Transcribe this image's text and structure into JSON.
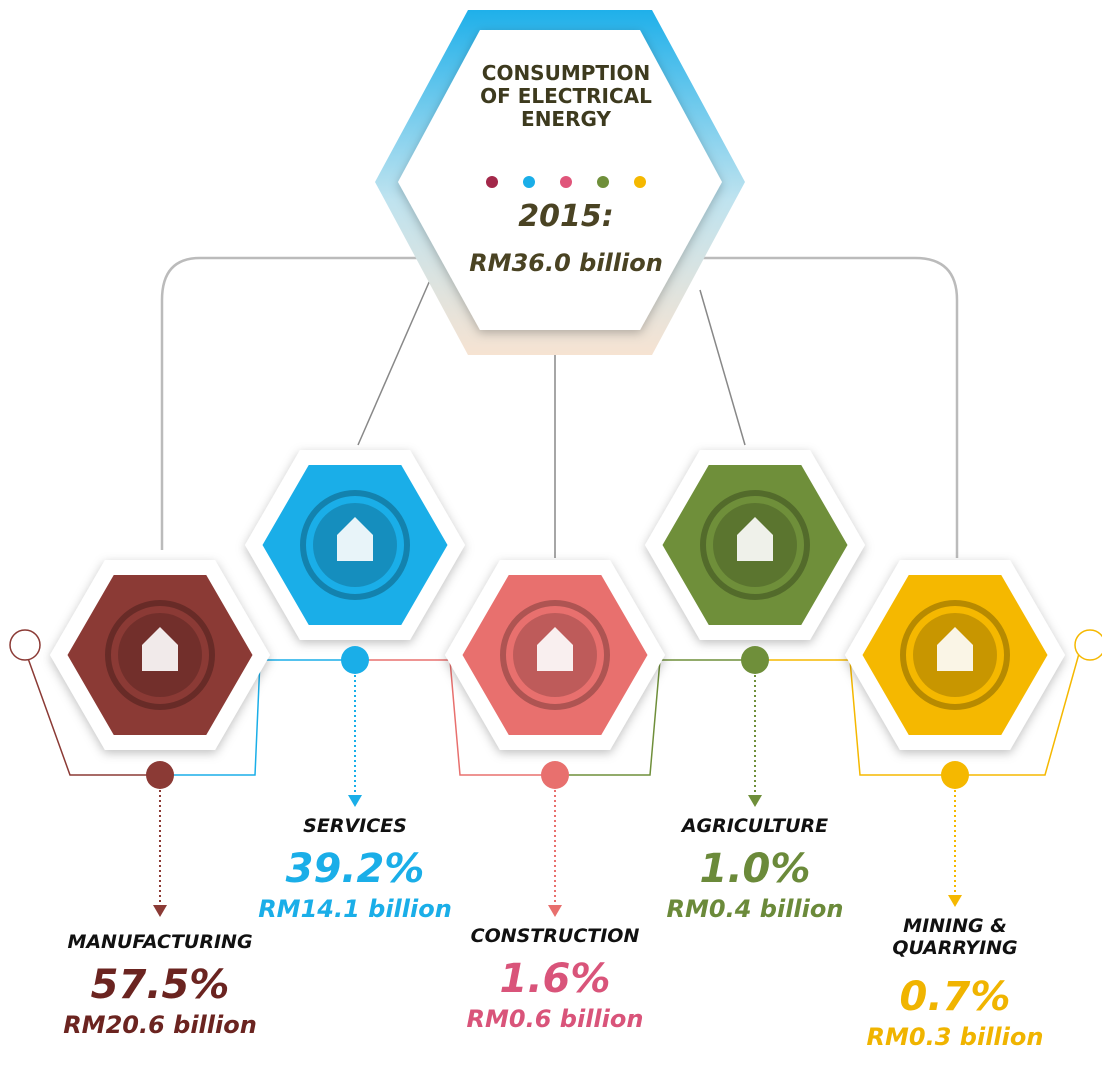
{
  "header": {
    "title": "CONSUMPTION OF ELECTRICAL ENERGY",
    "year": "2015:",
    "total": "RM36.0 billion"
  },
  "legend_colors": [
    "#a3284a",
    "#1aaee8",
    "#e0557a",
    "#6f8f3a",
    "#f5b800"
  ],
  "sectors": [
    {
      "name": "MANUFACTURING",
      "share": "57.5%",
      "amount": "RM20.6 billion",
      "color": "#8b3a35",
      "text_color": "#6b2420"
    },
    {
      "name": "SERVICES",
      "share": "39.2%",
      "amount": "RM14.1 billion",
      "color": "#1aaee8",
      "text_color": "#1aaee8"
    },
    {
      "name": "CONSTRUCTION",
      "share": "1.6%",
      "amount": "RM0.6 billion",
      "color": "#e8706e",
      "text_color": "#d9547a"
    },
    {
      "name": "AGRICULTURE",
      "share": "1.0%",
      "amount": "RM0.4 billion",
      "color": "#6f8f3a",
      "text_color": "#6b8a3a"
    },
    {
      "name": "MINING & QUARRYING",
      "share": "0.7%",
      "amount": "RM0.3 billion",
      "color": "#f5b800",
      "text_color": "#f0b400"
    }
  ]
}
